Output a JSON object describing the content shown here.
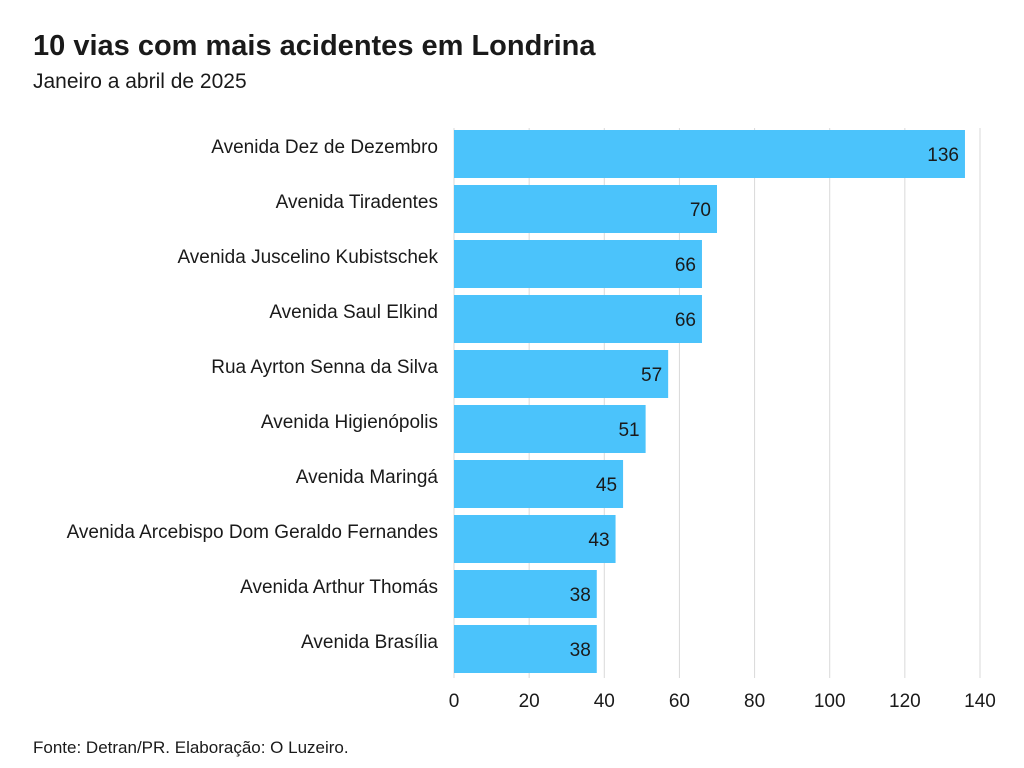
{
  "header": {
    "title": "10 vias com mais acidentes em Londrina",
    "subtitle": "Janeiro a abril de 2025"
  },
  "footer": {
    "source": "Fonte: Detran/PR. Elaboração: O Luzeiro."
  },
  "chart_data": {
    "type": "bar",
    "orientation": "horizontal",
    "title": "10 vias com mais acidentes em Londrina",
    "subtitle": "Janeiro a abril de 2025",
    "categories": [
      "Avenida Dez de Dezembro",
      "Avenida Tiradentes",
      "Avenida Juscelino Kubistschek",
      "Avenida Saul Elkind",
      "Rua Ayrton Senna da Silva",
      "Avenida Higienópolis",
      "Avenida Maringá",
      "Avenida Arcebispo Dom Geraldo Fernandes",
      "Avenida Arthur Thomás",
      "Avenida Brasília"
    ],
    "values": [
      136,
      70,
      66,
      66,
      57,
      51,
      45,
      43,
      38,
      38
    ],
    "xlim": [
      0,
      140
    ],
    "xticks": [
      "0",
      "20",
      "40",
      "60",
      "80",
      "100",
      "120",
      "140"
    ],
    "xlabel": "",
    "ylabel": "",
    "grid": "vertical",
    "data_labels": true,
    "bar_color": "#4bc3fb",
    "grid_color": "#d9d9d9",
    "legend": "none"
  }
}
